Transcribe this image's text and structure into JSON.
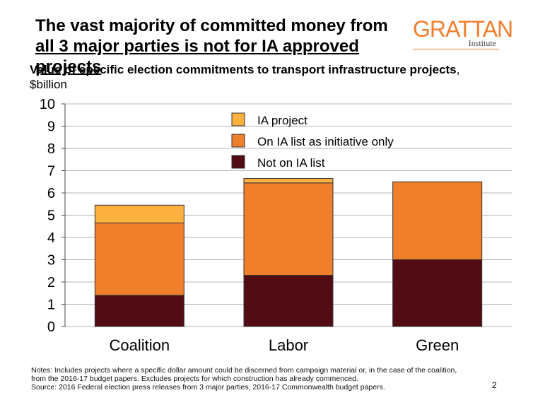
{
  "title": {
    "line1": "The vast majority of committed money from",
    "line2": "all 3 major parties is not for IA approved projects"
  },
  "logo": {
    "main": "GRATTAN",
    "sub": "Institute"
  },
  "subtitle": {
    "bold": "Value of specific election commitments to transport infrastructure projects",
    "normal": ", $billion"
  },
  "colors": {
    "ia_project": "#fbb040",
    "initiative": "#f07f2c",
    "not_listed": "#520c13",
    "grid": "#b5b5b5",
    "logo": "#f07f2c"
  },
  "chart_data": {
    "type": "bar",
    "stacked": true,
    "categories": [
      "Coalition",
      "Labor",
      "Green"
    ],
    "series": [
      {
        "name": "Not on IA list",
        "values": [
          1.4,
          2.3,
          3.0
        ]
      },
      {
        "name": "On IA list as initiative only",
        "values": [
          3.25,
          4.15,
          3.5
        ]
      },
      {
        "name": "IA project",
        "values": [
          0.8,
          0.2,
          0.0
        ]
      }
    ],
    "legend_order": [
      "IA project",
      "On IA list as initiative only",
      "Not on IA list"
    ],
    "legend_placement": "top-center",
    "ylim": [
      0,
      10
    ],
    "yticks": [
      0,
      1,
      2,
      3,
      4,
      5,
      6,
      7,
      8,
      9,
      10
    ],
    "grid": true
  },
  "notes": {
    "line1": "Notes: Includes projects where a specific dollar amount could be discerned from campaign material or, in the case of the coalition,",
    "line2": "from the 2016-17 budget papers. Excludes projects for which construction has already commenced.",
    "line3": "Source: 2016 Federal election press releases from 3 major parties, 2016-17 Commonwealth budget papers."
  },
  "page_number": "2"
}
